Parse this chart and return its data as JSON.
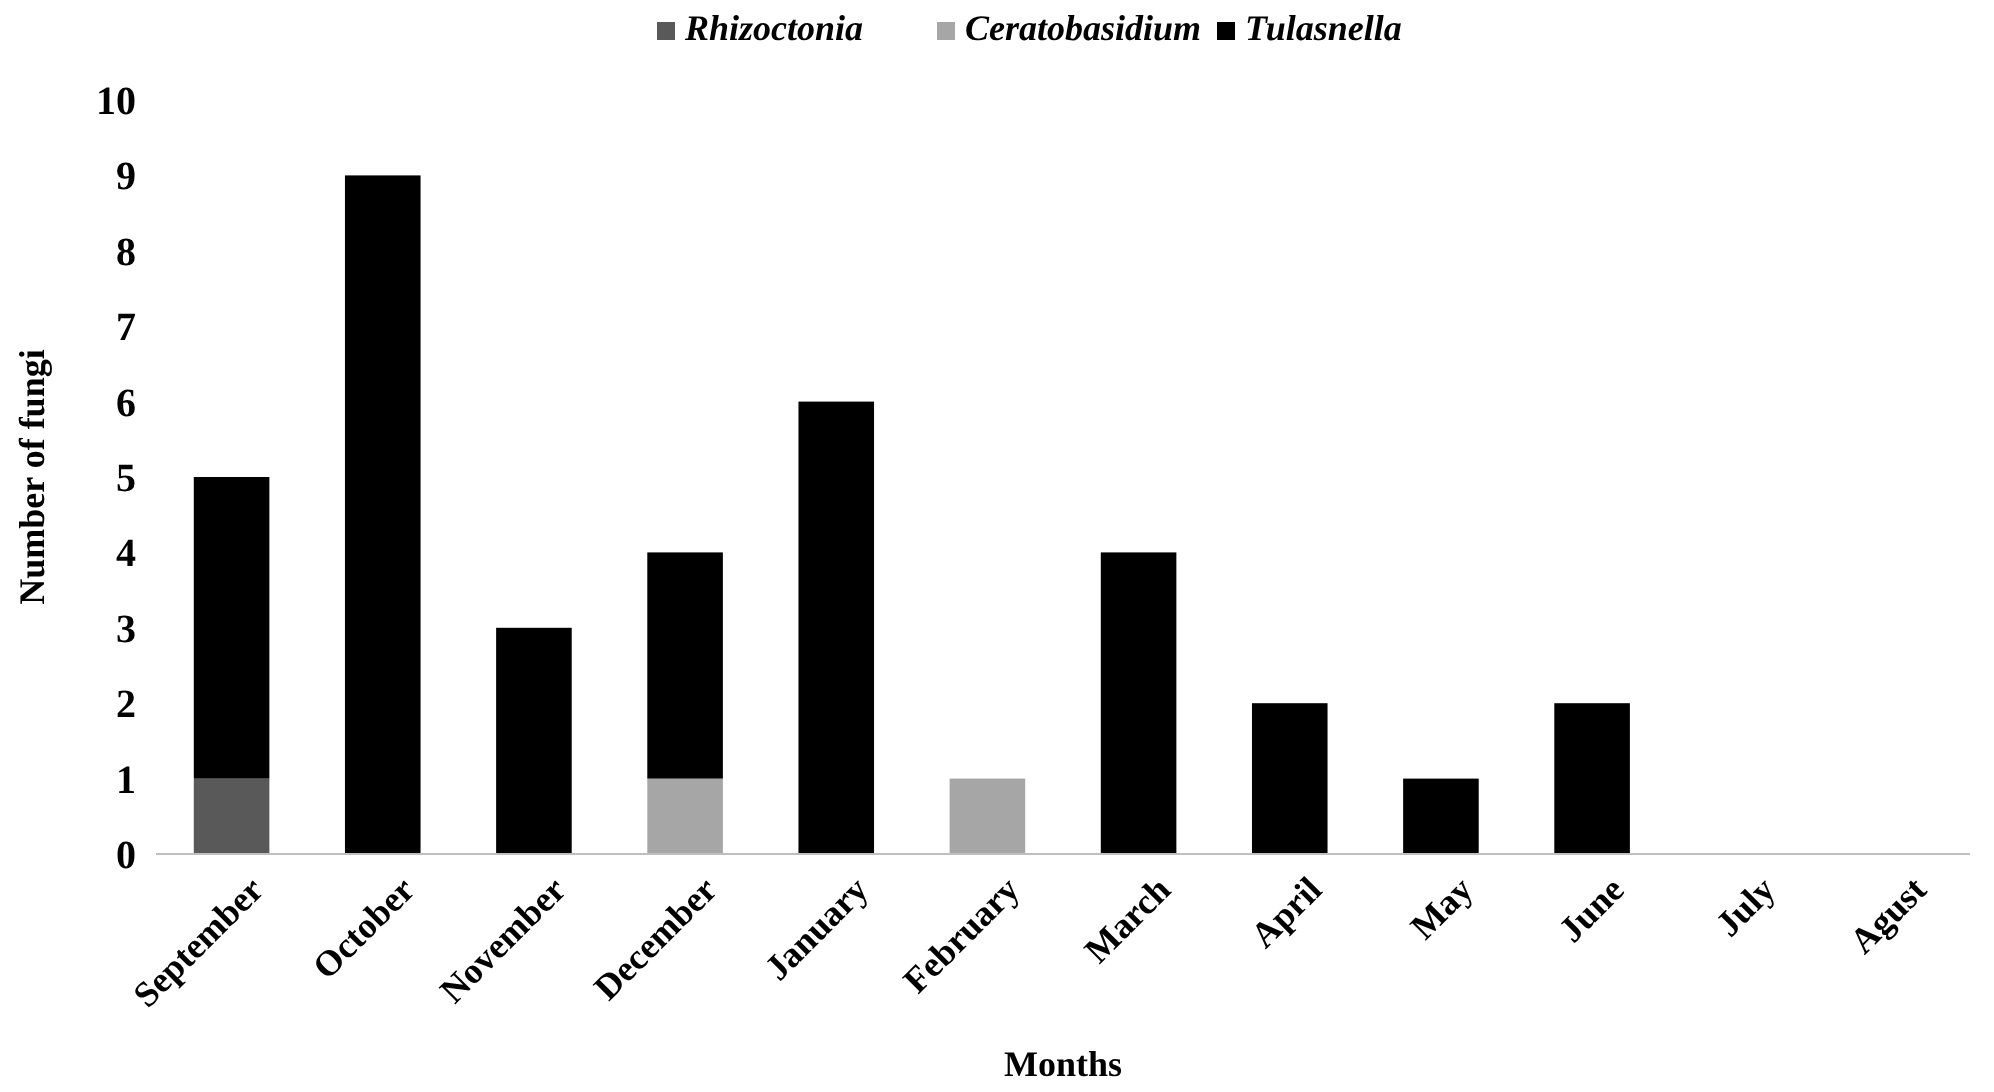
{
  "chart_data": {
    "type": "bar",
    "stacked": true,
    "xlabel": "Months",
    "ylabel": "Number of fungi",
    "categories": [
      "September",
      "October",
      "November",
      "December",
      "January",
      "February",
      "March",
      "April",
      "May",
      "June",
      "July",
      "Agust"
    ],
    "series": [
      {
        "name": "Rhizoctonia",
        "color": "#595959",
        "values": [
          1,
          0,
          0,
          0,
          0,
          0,
          0,
          0,
          0,
          0,
          0,
          0
        ]
      },
      {
        "name": "Ceratobasidium",
        "color": "#a6a6a6",
        "values": [
          0,
          0,
          0,
          1,
          0,
          1,
          0,
          0,
          0,
          0,
          0,
          0
        ]
      },
      {
        "name": "Tulasnella",
        "color": "#000000",
        "values": [
          4,
          9,
          3,
          3,
          6,
          0,
          4,
          2,
          1,
          2,
          0,
          0
        ]
      }
    ],
    "ylim": [
      0,
      10
    ],
    "yticks": [
      0,
      1,
      2,
      3,
      4,
      5,
      6,
      7,
      8,
      9,
      10
    ],
    "grid": false,
    "legend": "top"
  }
}
